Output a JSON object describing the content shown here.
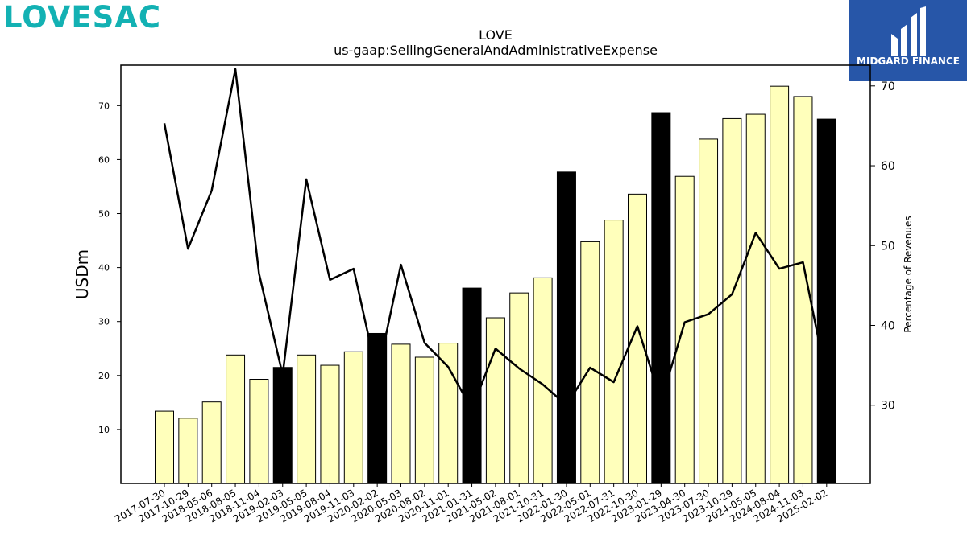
{
  "brand": {
    "name": "LOVESAC",
    "accent": "#13b1b3"
  },
  "watermark": {
    "name": "MIDGARD FINANCE",
    "bg": "#2756a8"
  },
  "chart_data": {
    "type": "bar",
    "title": "LOVE",
    "subtitle": "us-gaap:SellingGeneralAndAdministrativeExpense",
    "ylabel": "USDm",
    "y2label": "Percentage of Revenues",
    "ylim": [
      0,
      77.5
    ],
    "y2lim": [
      20.2,
      72.6
    ],
    "yticks": [
      10,
      20,
      30,
      40,
      50,
      60,
      70
    ],
    "y2ticks": [
      30,
      40,
      50,
      60,
      70
    ],
    "categories": [
      "2017-07-30",
      "2017-10-29",
      "2018-05-06",
      "2018-08-05",
      "2018-11-04",
      "2019-02-03",
      "2019-05-05",
      "2019-08-04",
      "2019-11-03",
      "2020-02-02",
      "2020-05-03",
      "2020-08-02",
      "2020-11-01",
      "2021-01-31",
      "2021-05-02",
      "2021-08-01",
      "2021-10-31",
      "2022-01-30",
      "2022-05-01",
      "2022-07-31",
      "2022-10-30",
      "2023-01-29",
      "2023-04-30",
      "2023-07-30",
      "2023-10-29",
      "2024-05-05",
      "2024-08-04",
      "2024-11-03",
      "2025-02-02"
    ],
    "series": [
      {
        "type": "bar",
        "values": [
          13.4,
          12.1,
          15.1,
          23.8,
          19.3,
          21.5,
          23.8,
          21.9,
          24.4,
          27.8,
          25.8,
          23.4,
          26.0,
          36.2,
          30.7,
          35.3,
          38.1,
          57.7,
          44.8,
          48.8,
          53.6,
          68.7,
          56.9,
          63.8,
          67.6,
          68.4,
          73.6,
          71.7,
          67.5
        ],
        "highlight": [
          false,
          false,
          false,
          false,
          false,
          true,
          false,
          false,
          false,
          true,
          false,
          false,
          false,
          true,
          false,
          false,
          false,
          true,
          false,
          false,
          false,
          true,
          false,
          false,
          false,
          false,
          false,
          false,
          true
        ],
        "fill": "#ffffbb",
        "highlight_fill": "#000000"
      },
      {
        "type": "line",
        "axis": "y2",
        "values": [
          65.3,
          49.6,
          56.9,
          72.1,
          46.5,
          33.8,
          58.3,
          45.7,
          47.1,
          33.7,
          47.6,
          37.8,
          34.8,
          29.5,
          37.1,
          34.6,
          32.6,
          30.0,
          34.7,
          32.9,
          39.9,
          30.5,
          40.4,
          41.4,
          43.9,
          51.6,
          47.1,
          47.9,
          33.2
        ],
        "color": "#000000"
      }
    ]
  }
}
